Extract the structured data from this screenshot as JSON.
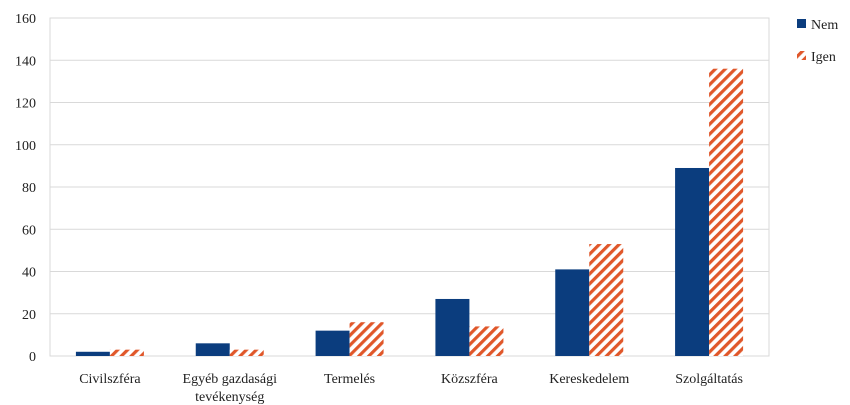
{
  "chart_data": {
    "type": "bar",
    "categories": [
      "Civilszféra",
      "Egyéb gazdasági tevékenység",
      "Termelés",
      "Közszféra",
      "Kereskedelem",
      "Szolgáltatás"
    ],
    "series": [
      {
        "name": "Nem",
        "values": [
          2,
          6,
          12,
          27,
          41,
          89
        ],
        "color": "#0b3d7e",
        "pattern": "solid"
      },
      {
        "name": "Igen",
        "values": [
          3,
          3,
          16,
          14,
          53,
          136
        ],
        "color": "#e0572a",
        "pattern": "diagonal-hatch"
      }
    ],
    "ylim": [
      0,
      160
    ],
    "yticks": [
      0,
      20,
      40,
      60,
      80,
      100,
      120,
      140,
      160
    ],
    "grid": true,
    "legend": "right",
    "title": "",
    "xlabel": "",
    "ylabel": ""
  }
}
